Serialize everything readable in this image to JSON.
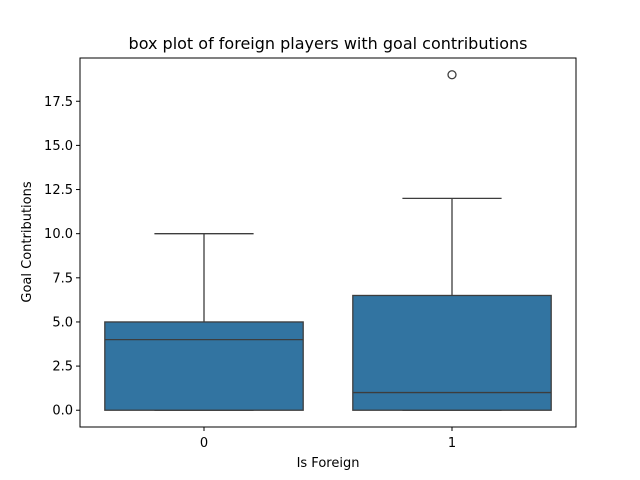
{
  "chart_data": {
    "type": "box",
    "title": "box plot of foreign players with goal contributions",
    "xlabel": "Is Foreign",
    "ylabel": "Goal Contributions",
    "categories": [
      "0",
      "1"
    ],
    "boxes": [
      {
        "category": "0",
        "whisker_low": 0,
        "q1": 0,
        "median": 4,
        "q3": 5,
        "whisker_high": 10,
        "outliers": []
      },
      {
        "category": "1",
        "whisker_low": 0,
        "q1": 0,
        "median": 1,
        "q3": 6.5,
        "whisker_high": 12,
        "outliers": [
          19
        ]
      }
    ],
    "yticks": [
      "0.0",
      "2.5",
      "5.0",
      "7.5",
      "10.0",
      "12.5",
      "15.0",
      "17.5"
    ],
    "ytick_values": [
      0,
      2.5,
      5,
      7.5,
      10,
      12.5,
      15,
      17.5
    ],
    "ylim": [
      -0.95,
      19.95
    ],
    "grid": false,
    "colors": {
      "box_fill": "#3274a1",
      "line": "#3d3d3d",
      "axis": "#000000"
    }
  }
}
